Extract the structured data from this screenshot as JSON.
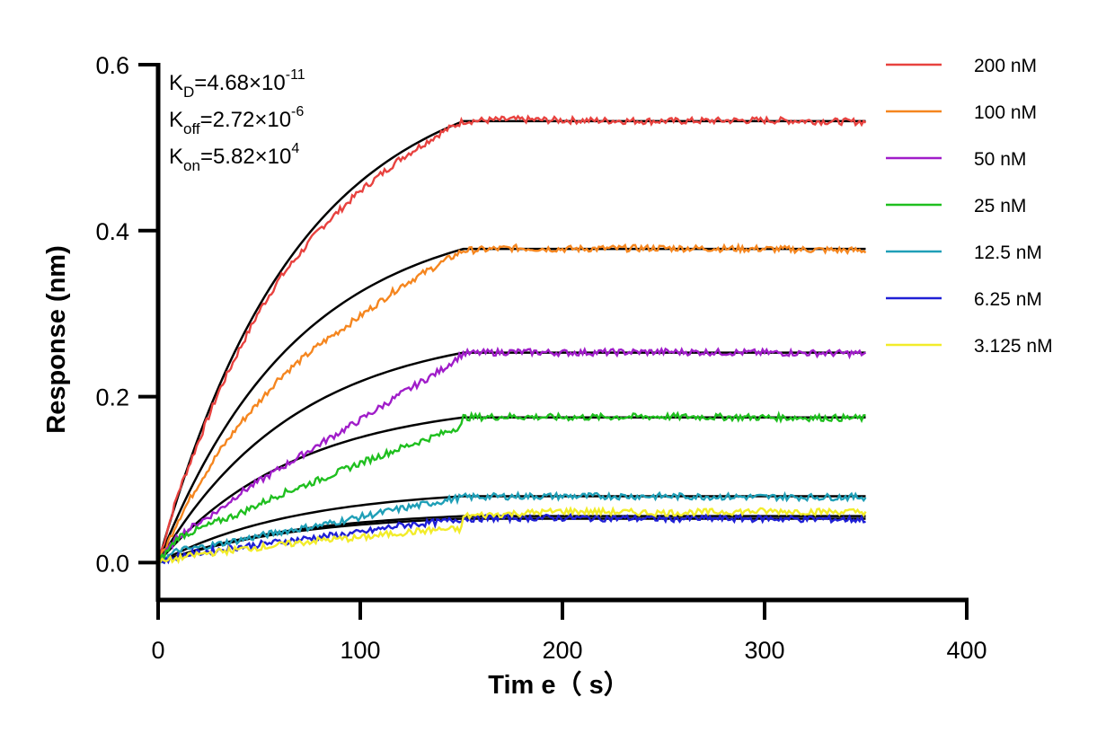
{
  "chart_data": {
    "type": "line",
    "title": "",
    "xlabel": "Tim e（ s）",
    "ylabel": "Response (nm)",
    "xlim": [
      0,
      400
    ],
    "ylim": [
      -0.045,
      0.6
    ],
    "xticks": [
      0,
      100,
      200,
      300,
      400
    ],
    "yticks": [
      0.0,
      0.2,
      0.4,
      0.6
    ],
    "xtick_labels": [
      "0",
      "100",
      "200",
      "300",
      "400"
    ],
    "ytick_labels": [
      "0.0",
      "0.2",
      "0.4",
      "0.6"
    ],
    "association_end": 151,
    "end_time": 350,
    "grid": false,
    "legend_position": "right",
    "parameters": [
      {
        "symbol": "K",
        "sub": "D",
        "value": "=4.68×10",
        "exp": "-11"
      },
      {
        "symbol": "K",
        "sub": "off",
        "value": "=2.72×10",
        "exp": "-6"
      },
      {
        "symbol": "K",
        "sub": "on",
        "value": "=5.82×10",
        "exp": "4"
      }
    ],
    "series": [
      {
        "name": "200 nM",
        "color": "#e8423f",
        "x": [
          0,
          5,
          10,
          20,
          30,
          40,
          50,
          60,
          80,
          100,
          120,
          140,
          151,
          175,
          200,
          250,
          300,
          350
        ],
        "y": [
          0,
          0.043,
          0.085,
          0.146,
          0.206,
          0.256,
          0.303,
          0.342,
          0.402,
          0.448,
          0.487,
          0.518,
          0.532,
          0.534,
          0.533,
          0.532,
          0.533,
          0.531
        ]
      },
      {
        "name": "100 nM",
        "color": "#f5861f",
        "x": [
          0,
          5,
          10,
          20,
          30,
          40,
          50,
          60,
          80,
          100,
          120,
          140,
          151,
          175,
          200,
          250,
          300,
          350
        ],
        "y": [
          0,
          0.025,
          0.052,
          0.095,
          0.133,
          0.166,
          0.194,
          0.223,
          0.263,
          0.297,
          0.333,
          0.361,
          0.376,
          0.379,
          0.378,
          0.379,
          0.378,
          0.376
        ]
      },
      {
        "name": "50 nM",
        "color": "#a01dc9",
        "x": [
          0,
          10,
          20,
          30,
          40,
          50,
          60,
          80,
          100,
          120,
          140,
          151,
          175,
          200,
          250,
          300,
          350
        ],
        "y": [
          0,
          0.032,
          0.048,
          0.063,
          0.083,
          0.098,
          0.113,
          0.143,
          0.172,
          0.203,
          0.232,
          0.252,
          0.254,
          0.253,
          0.254,
          0.253,
          0.252
        ]
      },
      {
        "name": "25 nM",
        "color": "#1fbf1f",
        "x": [
          0,
          10,
          20,
          30,
          40,
          60,
          80,
          100,
          120,
          140,
          150,
          151,
          175,
          200,
          250,
          300,
          350
        ],
        "y": [
          0,
          0.031,
          0.04,
          0.05,
          0.059,
          0.082,
          0.1,
          0.12,
          0.138,
          0.155,
          0.165,
          0.175,
          0.176,
          0.175,
          0.176,
          0.175,
          0.174
        ]
      },
      {
        "name": "12.5 nM",
        "color": "#1f9fb7",
        "x": [
          0,
          10,
          20,
          40,
          60,
          80,
          100,
          120,
          140,
          151,
          175,
          200,
          250,
          300,
          350
        ],
        "y": [
          0,
          0.015,
          0.018,
          0.027,
          0.037,
          0.045,
          0.055,
          0.065,
          0.074,
          0.079,
          0.08,
          0.08,
          0.08,
          0.079,
          0.079
        ]
      },
      {
        "name": "6.25 nM",
        "color": "#1f1fd6",
        "x": [
          0,
          10,
          20,
          40,
          60,
          80,
          100,
          120,
          140,
          151,
          175,
          200,
          250,
          300,
          350
        ],
        "y": [
          0,
          0.008,
          0.012,
          0.019,
          0.025,
          0.031,
          0.036,
          0.045,
          0.049,
          0.053,
          0.054,
          0.054,
          0.053,
          0.053,
          0.052
        ]
      },
      {
        "name": "3.125 nM",
        "color": "#f2ec2a",
        "x": [
          0,
          10,
          20,
          40,
          60,
          80,
          100,
          120,
          140,
          150,
          151,
          175,
          200,
          250,
          300,
          350
        ],
        "y": [
          0,
          0.005,
          0.01,
          0.016,
          0.021,
          0.027,
          0.03,
          0.036,
          0.04,
          0.04,
          0.056,
          0.059,
          0.062,
          0.06,
          0.062,
          0.061
        ]
      }
    ],
    "fits": [
      {
        "x": [
          0,
          151,
          350
        ],
        "y": [
          0,
          0.532,
          0.532
        ],
        "shape": "exp"
      },
      {
        "x": [
          0,
          151,
          350
        ],
        "y": [
          0,
          0.378,
          0.378
        ],
        "shape": "exp"
      },
      {
        "x": [
          0,
          151,
          350
        ],
        "y": [
          0,
          0.253,
          0.253
        ],
        "shape": "exp"
      },
      {
        "x": [
          0,
          151,
          350
        ],
        "y": [
          0,
          0.175,
          0.175
        ],
        "shape": "exp"
      },
      {
        "x": [
          0,
          151,
          350
        ],
        "y": [
          0,
          0.08,
          0.08
        ],
        "shape": "exp"
      },
      {
        "x": [
          0,
          151,
          350
        ],
        "y": [
          0,
          0.056,
          0.056
        ],
        "shape": "exp"
      },
      {
        "x": [
          0,
          151,
          350
        ],
        "y": [
          0,
          0.053,
          0.053
        ],
        "shape": "exp"
      }
    ]
  }
}
